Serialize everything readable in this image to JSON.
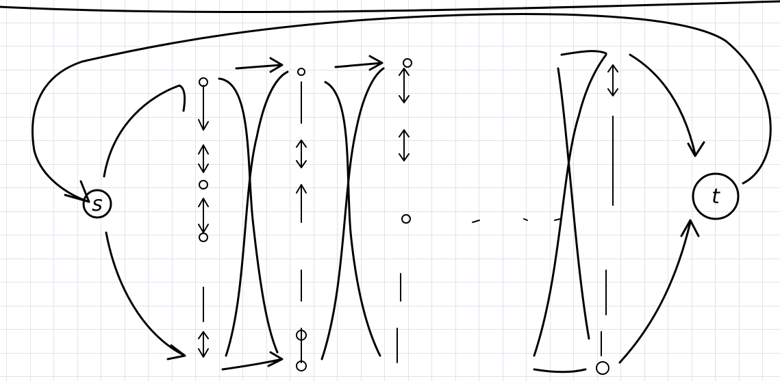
{
  "nodes": [
    {
      "label": "s"
    },
    {
      "label": "t"
    }
  ]
}
